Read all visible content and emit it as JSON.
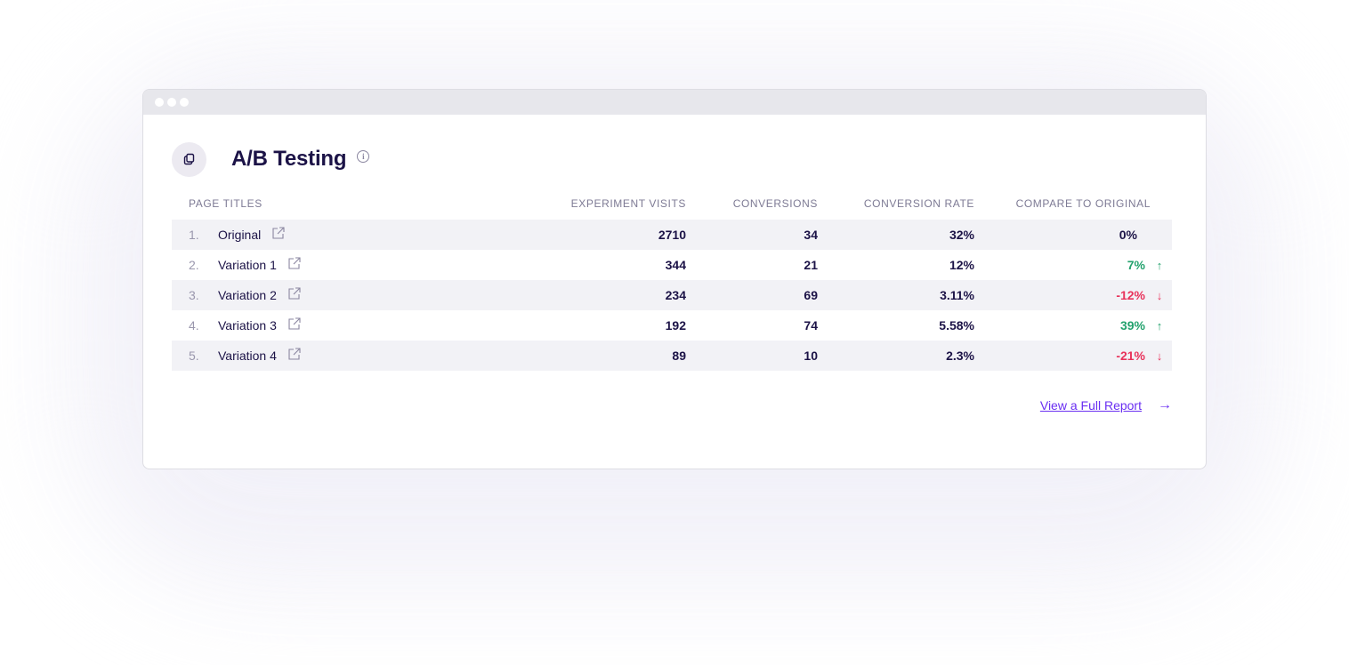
{
  "panel": {
    "title": "A/B Testing",
    "info_icon": "info-icon",
    "header_icon": "copy-icon"
  },
  "table": {
    "columns": {
      "page_titles": "PAGE TITLES",
      "experiment_visits": "EXPERIMENT VISITS",
      "conversions": "CONVERSIONS",
      "conversion_rate": "CONVERSION RATE",
      "compare": "COMPARE TO ORIGINAL"
    },
    "rows": [
      {
        "index": "1.",
        "title": "Original",
        "visits": "2710",
        "conversions": "34",
        "rate": "32%",
        "compare": "0%",
        "trend": "none"
      },
      {
        "index": "2.",
        "title": "Variation 1",
        "visits": "344",
        "conversions": "21",
        "rate": "12%",
        "compare": "7%",
        "trend": "up"
      },
      {
        "index": "3.",
        "title": "Variation 2",
        "visits": "234",
        "conversions": "69",
        "rate": "3.11%",
        "compare": "-12%",
        "trend": "down"
      },
      {
        "index": "4.",
        "title": "Variation 3",
        "visits": "192",
        "conversions": "74",
        "rate": "5.58%",
        "compare": "39%",
        "trend": "up"
      },
      {
        "index": "5.",
        "title": "Variation 4",
        "visits": "89",
        "conversions": "10",
        "rate": "2.3%",
        "compare": "-21%",
        "trend": "down"
      }
    ]
  },
  "footer": {
    "report_link": "View a Full Report",
    "arrow": "→"
  },
  "colors": {
    "positive": "#23a26d",
    "negative": "#e8335b",
    "neutral": "#1c1347",
    "accent": "#6a2ff2"
  }
}
